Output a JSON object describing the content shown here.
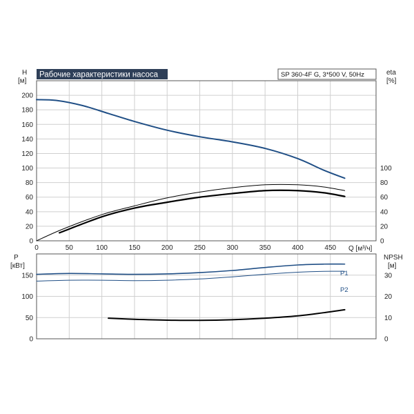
{
  "chart_data": [
    {
      "type": "line",
      "title": "Рабочие характеристики насоса",
      "legend_box": "SP 360-4F G, 3*500 V, 50Hz",
      "ylabel_left": "H",
      "ylabel_left_unit": "[м]",
      "ylabel_right": "eta",
      "ylabel_right_unit": "[%]",
      "xlabel": "Q [м³/ч]",
      "xlim": [
        0,
        520
      ],
      "ylim_left": [
        0,
        220
      ],
      "ylim_right": [
        0,
        220
      ],
      "x_ticks": [
        0,
        50,
        100,
        150,
        200,
        250,
        300,
        350,
        400,
        450
      ],
      "y_ticks_left": [
        0,
        20,
        40,
        60,
        80,
        100,
        120,
        140,
        160,
        180,
        200
      ],
      "y_ticks_right": [
        0,
        20,
        40,
        60,
        80,
        100
      ],
      "grid": true,
      "series": [
        {
          "key": "H",
          "axis": "left",
          "color": "#1f4e85",
          "width": 2,
          "points": [
            [
              0,
              194
            ],
            [
              30,
              193
            ],
            [
              70,
              186
            ],
            [
              110,
              175
            ],
            [
              150,
              164
            ],
            [
              200,
              152
            ],
            [
              250,
              143
            ],
            [
              300,
              136
            ],
            [
              350,
              127
            ],
            [
              400,
              113
            ],
            [
              440,
              97
            ],
            [
              472,
              86
            ]
          ]
        },
        {
          "key": "eta1",
          "axis": "right",
          "color": "#000000",
          "width": 1,
          "points": [
            [
              0,
              0
            ],
            [
              40,
              16
            ],
            [
              100,
              36
            ],
            [
              150,
              48
            ],
            [
              200,
              59
            ],
            [
              250,
              67
            ],
            [
              300,
              73
            ],
            [
              350,
              77
            ],
            [
              400,
              77
            ],
            [
              440,
              74
            ],
            [
              472,
              69
            ]
          ]
        },
        {
          "key": "eta2",
          "axis": "right",
          "color": "#000000",
          "width": 2.2,
          "points": [
            [
              35,
              11
            ],
            [
              100,
              33
            ],
            [
              150,
              45
            ],
            [
              200,
              53
            ],
            [
              250,
              60
            ],
            [
              300,
              65
            ],
            [
              350,
              69
            ],
            [
              400,
              69
            ],
            [
              440,
              66
            ],
            [
              472,
              61
            ]
          ]
        }
      ]
    },
    {
      "type": "line",
      "ylabel_left": "P",
      "ylabel_left_unit": "[кВт]",
      "ylabel_right": "NPSH",
      "ylabel_right_unit": "[м]",
      "xlim": [
        0,
        520
      ],
      "ylim_left": [
        0,
        200
      ],
      "ylim_right": [
        0,
        40
      ],
      "y_ticks_left": [
        0,
        50,
        100,
        150
      ],
      "y_ticks_right": [
        0,
        10,
        20,
        30
      ],
      "grid": true,
      "series": [
        {
          "name": "P1",
          "axis": "left",
          "color": "#1f4e85",
          "width": 1.6,
          "points": [
            [
              0,
              152
            ],
            [
              50,
              154
            ],
            [
              100,
              153
            ],
            [
              150,
              152
            ],
            [
              200,
              153
            ],
            [
              250,
              156
            ],
            [
              300,
              161
            ],
            [
              350,
              168
            ],
            [
              400,
              174
            ],
            [
              440,
              176
            ],
            [
              472,
              176
            ]
          ]
        },
        {
          "name": "P2",
          "axis": "left",
          "color": "#1f4e85",
          "width": 1,
          "points": [
            [
              0,
              136
            ],
            [
              50,
              138
            ],
            [
              100,
              138
            ],
            [
              150,
              137
            ],
            [
              200,
              138
            ],
            [
              250,
              141
            ],
            [
              300,
              146
            ],
            [
              350,
              152
            ],
            [
              400,
              157
            ],
            [
              440,
              159
            ],
            [
              472,
              159
            ]
          ]
        },
        {
          "key": "NPSH",
          "axis": "right",
          "color": "#000000",
          "width": 2,
          "points": [
            [
              110,
              9.7
            ],
            [
              150,
              9.2
            ],
            [
              200,
              8.8
            ],
            [
              250,
              8.7
            ],
            [
              300,
              9
            ],
            [
              350,
              9.7
            ],
            [
              400,
              10.8
            ],
            [
              440,
              12.3
            ],
            [
              472,
              13.7
            ]
          ]
        }
      ]
    }
  ]
}
